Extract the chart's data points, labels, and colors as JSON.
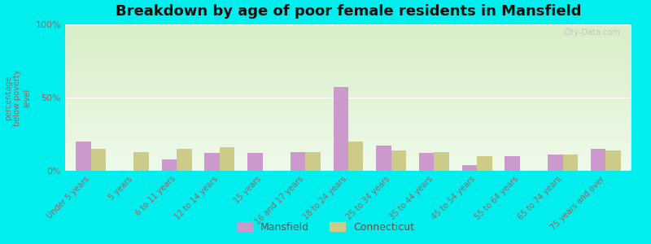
{
  "title": "Breakdown by age of poor female residents in Mansfield",
  "ylabel": "percentage\nbelow poverty\nlevel",
  "categories": [
    "Under 5 years",
    "5 years",
    "6 to 11 years",
    "12 to 14 years",
    "15 years",
    "16 and 17 years",
    "18 to 24 years",
    "25 to 34 years",
    "35 to 44 years",
    "45 to 54 years",
    "55 to 64 years",
    "65 to 74 years",
    "75 years and over"
  ],
  "mansfield": [
    20,
    0,
    8,
    12,
    12,
    13,
    57,
    17,
    12,
    4,
    10,
    11,
    15
  ],
  "connecticut": [
    15,
    13,
    15,
    16,
    0,
    13,
    20,
    14,
    13,
    10,
    0,
    11,
    14
  ],
  "mansfield_color": "#cc99cc",
  "connecticut_color": "#cccc88",
  "background_top": "#d8eec8",
  "background_bottom": "#eefaea",
  "outer_bg": "#00eeee",
  "ylim": [
    0,
    100
  ],
  "yticks": [
    0,
    50,
    100
  ],
  "ytick_labels": [
    "0%",
    "50%",
    "100%"
  ],
  "bar_width": 0.35,
  "title_fontsize": 13,
  "legend_labels": [
    "Mansfield",
    "Connecticut"
  ]
}
